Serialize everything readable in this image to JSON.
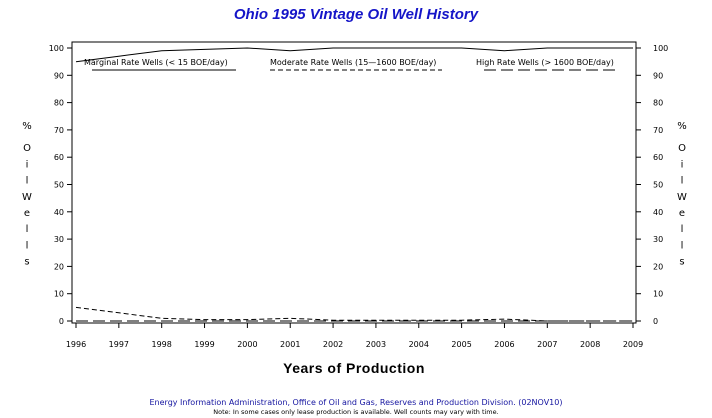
{
  "chart_data": {
    "type": "line",
    "title": "Ohio 1995 Vintage Oil Well History",
    "xlabel": "Years of Production",
    "ylabel": "% Oil Wells",
    "ylabel_right": "% Oil Wells",
    "x": [
      1996,
      1997,
      1998,
      1999,
      2000,
      2001,
      2002,
      2003,
      2004,
      2005,
      2006,
      2007,
      2008,
      2009
    ],
    "xlim": [
      1996,
      2009
    ],
    "ylim": [
      0,
      100
    ],
    "yticks": [
      0,
      10,
      20,
      30,
      40,
      50,
      60,
      70,
      80,
      90,
      100
    ],
    "grid": false,
    "legend_position": "top, inside plot",
    "series": [
      {
        "name": "Marginal Rate Wells (<  15 BOE/day)",
        "style": "solid",
        "values": [
          95,
          97,
          99,
          99.5,
          100,
          99,
          100,
          100,
          100,
          100,
          99,
          100,
          100,
          100
        ]
      },
      {
        "name": "Moderate Rate Wells (15—1600 BOE/day)",
        "style": "dashed",
        "values": [
          5,
          3,
          1,
          0.5,
          0.5,
          1,
          0.3,
          0.3,
          0.3,
          0.3,
          0.7,
          0,
          0,
          0
        ]
      },
      {
        "name": "High Rate Wells (> 1600 BOE/day)",
        "style": "longdash",
        "values": [
          0,
          0,
          0,
          0,
          0,
          0,
          0,
          0,
          0,
          0,
          0,
          0,
          0,
          0
        ]
      }
    ]
  },
  "footer": {
    "source": "Energy Information Administration, Office of Oil and Gas, Reserves and Production Division. (02NOV10)",
    "note": "Note: In some cases only lease production is available. Well counts may vary with time."
  }
}
